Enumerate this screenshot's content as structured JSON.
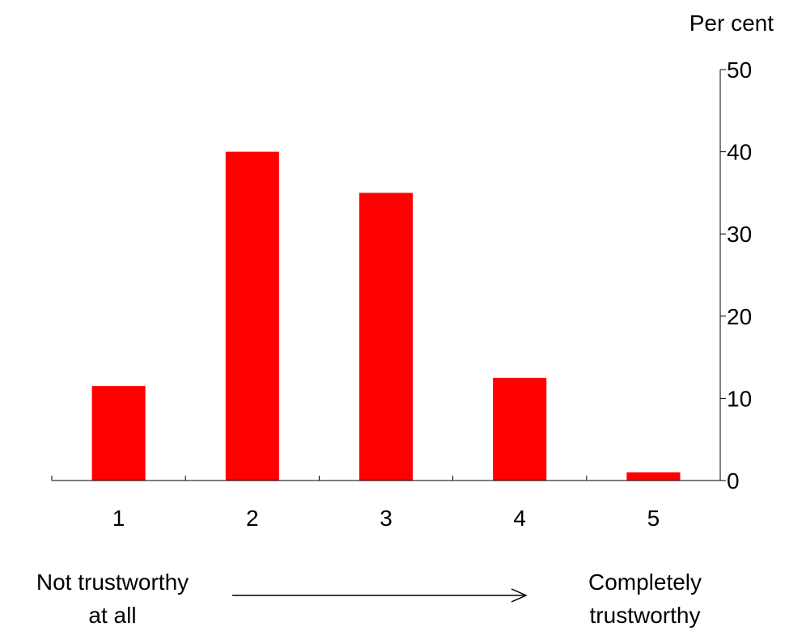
{
  "chart_data": {
    "type": "bar",
    "categories": [
      "1",
      "2",
      "3",
      "4",
      "5"
    ],
    "values": [
      11.5,
      40,
      35,
      12.5,
      1
    ],
    "title": "",
    "xlabel": "",
    "ylabel": "Per cent",
    "ylim": [
      0,
      50
    ],
    "yticks": [
      "0",
      "10",
      "20",
      "30",
      "40",
      "50"
    ],
    "ytick_values": [
      0,
      10,
      20,
      30,
      40,
      50
    ],
    "y_axis_side": "right",
    "grid": false,
    "bar_color": "#ff0000",
    "scale_low_label": [
      "Not trustworthy",
      "at all"
    ],
    "scale_high_label": [
      "Completely",
      "trustworthy"
    ]
  }
}
